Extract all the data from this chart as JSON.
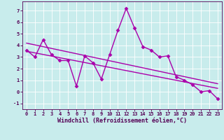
{
  "title": "",
  "xlabel": "Windchill (Refroidissement éolien,°C)",
  "ylabel": "",
  "bg_color": "#c8ecec",
  "line_color": "#aa00aa",
  "grid_color": "#ffffff",
  "x": [
    0,
    1,
    2,
    3,
    4,
    5,
    6,
    7,
    8,
    9,
    10,
    11,
    12,
    13,
    14,
    15,
    16,
    17,
    18,
    19,
    20,
    21,
    22,
    23
  ],
  "y_main": [
    3.6,
    3.0,
    4.5,
    3.2,
    2.7,
    2.7,
    0.5,
    3.1,
    2.5,
    1.1,
    3.2,
    5.3,
    7.2,
    5.5,
    3.9,
    3.6,
    3.0,
    3.1,
    1.3,
    1.0,
    0.6,
    0.0,
    0.1,
    -0.6
  ],
  "ylim": [
    -1.5,
    7.8
  ],
  "xlim": [
    -0.5,
    23.5
  ],
  "yticks": [
    -1,
    0,
    1,
    2,
    3,
    4,
    5,
    6,
    7
  ],
  "xticks": [
    0,
    1,
    2,
    3,
    4,
    5,
    6,
    7,
    8,
    9,
    10,
    11,
    12,
    13,
    14,
    15,
    16,
    17,
    18,
    19,
    20,
    21,
    22,
    23
  ],
  "regression_y_start_1": 4.2,
  "regression_y_end_1": 0.7,
  "regression_y_start_2": 3.5,
  "regression_y_end_2": 0.3,
  "marker": "D",
  "markersize": 2.5,
  "linewidth": 1.0,
  "tick_fontsize": 5.0,
  "label_fontsize": 6.0,
  "spine_color": "#550055",
  "text_color": "#550055"
}
